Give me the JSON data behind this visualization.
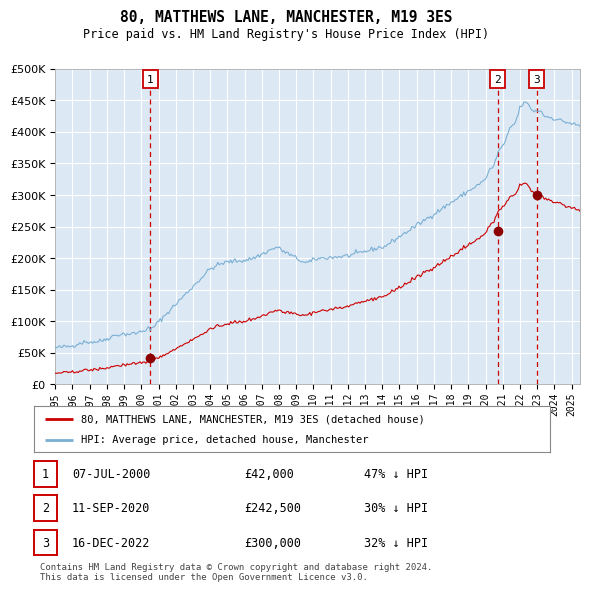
{
  "title": "80, MATTHEWS LANE, MANCHESTER, M19 3ES",
  "subtitle": "Price paid vs. HM Land Registry's House Price Index (HPI)",
  "background_color": "#dce9f5",
  "plot_bg_color": "#dce9f5",
  "hpi_color": "#7bafd4",
  "price_color": "#cc0000",
  "marker_color": "#8b0000",
  "vline_color": "#cc0000",
  "transactions": [
    {
      "date_num": 2000.52,
      "price": 42000,
      "label": "1"
    },
    {
      "date_num": 2020.7,
      "price": 242500,
      "label": "2"
    },
    {
      "date_num": 2022.96,
      "price": 300000,
      "label": "3"
    }
  ],
  "ylim": [
    0,
    500000
  ],
  "yticks": [
    0,
    50000,
    100000,
    150000,
    200000,
    250000,
    300000,
    350000,
    400000,
    450000,
    500000
  ],
  "xlim": [
    1995.0,
    2025.5
  ],
  "xticks": [
    1995,
    1996,
    1997,
    1998,
    1999,
    2000,
    2001,
    2002,
    2003,
    2004,
    2005,
    2006,
    2007,
    2008,
    2009,
    2010,
    2011,
    2012,
    2013,
    2014,
    2015,
    2016,
    2017,
    2018,
    2019,
    2020,
    2021,
    2022,
    2023,
    2024,
    2025
  ],
  "legend_entries": [
    "80, MATTHEWS LANE, MANCHESTER, M19 3ES (detached house)",
    "HPI: Average price, detached house, Manchester"
  ],
  "table_rows": [
    [
      "1",
      "07-JUL-2000",
      "£42,000",
      "47% ↓ HPI"
    ],
    [
      "2",
      "11-SEP-2020",
      "£242,500",
      "30% ↓ HPI"
    ],
    [
      "3",
      "16-DEC-2022",
      "£300,000",
      "32% ↓ HPI"
    ]
  ],
  "footer": "Contains HM Land Registry data © Crown copyright and database right 2024.\nThis data is licensed under the Open Government Licence v3.0."
}
